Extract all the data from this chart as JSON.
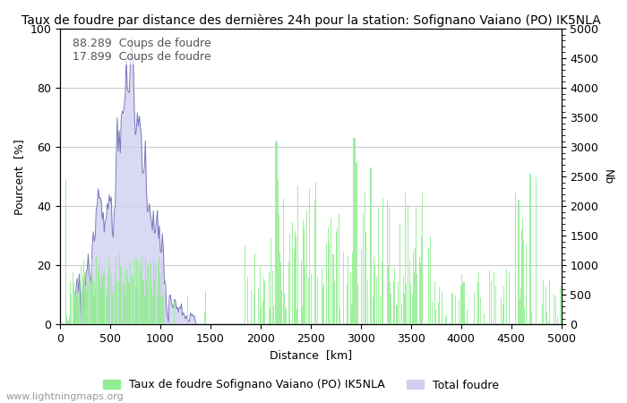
{
  "title": "Taux de foudre par distance des dernières 24h pour la station: Sofignano Vaiano (PO) IK5NLA",
  "xlabel": "Distance  [km]",
  "ylabel_left": "Pourcent  [%]",
  "ylabel_right": "Nb",
  "annotation_line1": "88.289  Coups de foudre",
  "annotation_line2": "17.899  Coups de foudre",
  "legend_label_green": "Taux de foudre Sofignano Vaiano (PO) IK5NLA",
  "legend_label_blue": "Total foudre",
  "watermark": "www.lightningmaps.org",
  "xlim": [
    0,
    5000
  ],
  "ylim_left": [
    0,
    100
  ],
  "ylim_right": [
    0,
    5000
  ],
  "bar_color": "#90ee90",
  "area_fill_color": "#d0d0f0",
  "area_line_color": "#7777bb",
  "background_color": "#ffffff",
  "grid_color": "#cccccc",
  "title_fontsize": 10,
  "label_fontsize": 9,
  "tick_fontsize": 9,
  "annotation_fontsize": 9,
  "watermark_fontsize": 8
}
